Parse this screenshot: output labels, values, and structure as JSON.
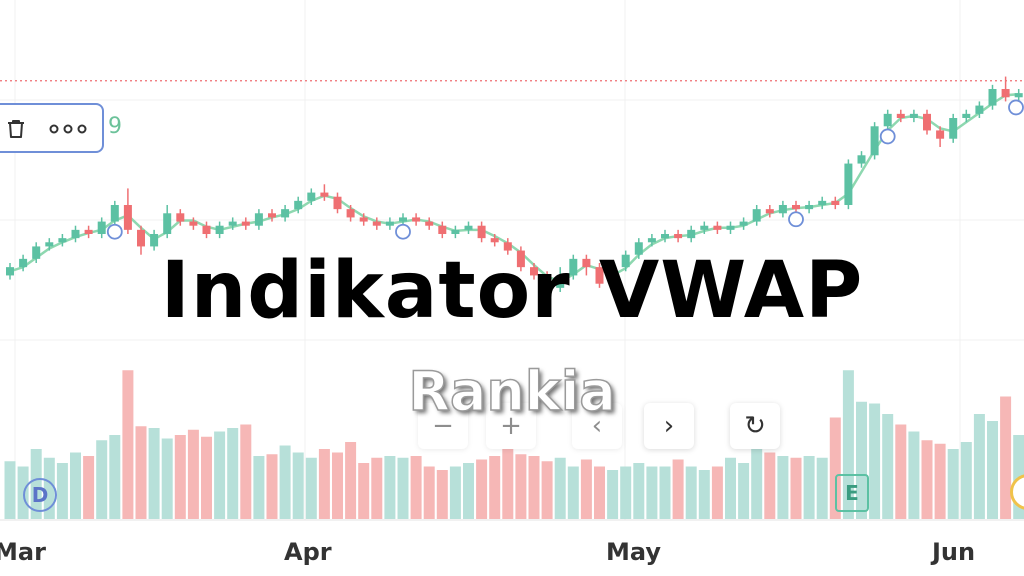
{
  "title": "Indikator VWAP",
  "watermark": "Rankia",
  "toolbar": {
    "value": "9",
    "icons": [
      "trash-icon",
      "more-dots-icon"
    ]
  },
  "nav_buttons": [
    {
      "name": "zoom-out-button",
      "glyph": "−"
    },
    {
      "name": "zoom-in-button",
      "glyph": "+"
    },
    {
      "name": "scroll-left-button",
      "glyph": "‹"
    },
    {
      "name": "scroll-right-button",
      "glyph": "›"
    },
    {
      "name": "reset-button",
      "glyph": "↻"
    }
  ],
  "events": {
    "dividend": "D",
    "earnings": "E"
  },
  "colors": {
    "up": "#5cc1a3",
    "down": "#ef6f72",
    "vol_up": "#b7e0d9",
    "vol_down": "#f6b7b6",
    "vwap": "#8ed8b0",
    "ref_line": "#ef6f72",
    "marker": "#6f8fd8"
  },
  "chart_data": {
    "type": "candlestick",
    "x_axis": {
      "tick_labels": [
        "Mar",
        "Apr",
        "May",
        "Jun"
      ]
    },
    "y_range": [
      90,
      160
    ],
    "reference_line": 155,
    "candles": [
      {
        "o": 108,
        "c": 110,
        "h": 111,
        "l": 107,
        "v": 33,
        "up": true
      },
      {
        "o": 110,
        "c": 112,
        "h": 113,
        "l": 109,
        "v": 30,
        "up": true
      },
      {
        "o": 112,
        "c": 115,
        "h": 116,
        "l": 111,
        "v": 40,
        "up": true
      },
      {
        "o": 115,
        "c": 116,
        "h": 117,
        "l": 114,
        "v": 35,
        "up": true
      },
      {
        "o": 116,
        "c": 117,
        "h": 118,
        "l": 115,
        "v": 32,
        "up": true
      },
      {
        "o": 117,
        "c": 119,
        "h": 120,
        "l": 116,
        "v": 38,
        "up": true
      },
      {
        "o": 119,
        "c": 118,
        "h": 120,
        "l": 117,
        "v": 36,
        "up": false
      },
      {
        "o": 118,
        "c": 121,
        "h": 122,
        "l": 117,
        "v": 45,
        "up": true
      },
      {
        "o": 121,
        "c": 125,
        "h": 126,
        "l": 120,
        "v": 48,
        "up": true
      },
      {
        "o": 125,
        "c": 119,
        "h": 129,
        "l": 118,
        "v": 85,
        "up": false
      },
      {
        "o": 119,
        "c": 115,
        "h": 120,
        "l": 113,
        "v": 53,
        "up": false
      },
      {
        "o": 115,
        "c": 118,
        "h": 119,
        "l": 114,
        "v": 52,
        "up": true
      },
      {
        "o": 118,
        "c": 123,
        "h": 125,
        "l": 117,
        "v": 46,
        "up": true
      },
      {
        "o": 123,
        "c": 121,
        "h": 124,
        "l": 120,
        "v": 48,
        "up": false
      },
      {
        "o": 121,
        "c": 120,
        "h": 122,
        "l": 119,
        "v": 51,
        "up": false
      },
      {
        "o": 120,
        "c": 118,
        "h": 121,
        "l": 117,
        "v": 47,
        "up": false
      },
      {
        "o": 118,
        "c": 120,
        "h": 121,
        "l": 117,
        "v": 50,
        "up": true
      },
      {
        "o": 120,
        "c": 121,
        "h": 122,
        "l": 119,
        "v": 52,
        "up": true
      },
      {
        "o": 121,
        "c": 120,
        "h": 122,
        "l": 119,
        "v": 54,
        "up": false
      },
      {
        "o": 120,
        "c": 123,
        "h": 124,
        "l": 119,
        "v": 36,
        "up": true
      },
      {
        "o": 123,
        "c": 122,
        "h": 124,
        "l": 121,
        "v": 37,
        "up": false
      },
      {
        "o": 122,
        "c": 124,
        "h": 125,
        "l": 121,
        "v": 42,
        "up": true
      },
      {
        "o": 124,
        "c": 126,
        "h": 127,
        "l": 123,
        "v": 38,
        "up": true
      },
      {
        "o": 126,
        "c": 128,
        "h": 129,
        "l": 125,
        "v": 35,
        "up": true
      },
      {
        "o": 128,
        "c": 127,
        "h": 130,
        "l": 126,
        "v": 40,
        "up": false
      },
      {
        "o": 127,
        "c": 124,
        "h": 128,
        "l": 123,
        "v": 38,
        "up": false
      },
      {
        "o": 124,
        "c": 122,
        "h": 125,
        "l": 121,
        "v": 44,
        "up": false
      },
      {
        "o": 122,
        "c": 121,
        "h": 123,
        "l": 120,
        "v": 32,
        "up": false
      },
      {
        "o": 121,
        "c": 120,
        "h": 122,
        "l": 119,
        "v": 35,
        "up": false
      },
      {
        "o": 120,
        "c": 121,
        "h": 122,
        "l": 119,
        "v": 36,
        "up": true
      },
      {
        "o": 121,
        "c": 122,
        "h": 123,
        "l": 120,
        "v": 35,
        "up": true
      },
      {
        "o": 122,
        "c": 121,
        "h": 123,
        "l": 120,
        "v": 36,
        "up": false
      },
      {
        "o": 121,
        "c": 120,
        "h": 122,
        "l": 119,
        "v": 30,
        "up": false
      },
      {
        "o": 120,
        "c": 118,
        "h": 121,
        "l": 117,
        "v": 28,
        "up": false
      },
      {
        "o": 118,
        "c": 119,
        "h": 120,
        "l": 117,
        "v": 30,
        "up": true
      },
      {
        "o": 119,
        "c": 120,
        "h": 121,
        "l": 118,
        "v": 32,
        "up": true
      },
      {
        "o": 120,
        "c": 117,
        "h": 121,
        "l": 116,
        "v": 34,
        "up": false
      },
      {
        "o": 117,
        "c": 116,
        "h": 118,
        "l": 115,
        "v": 36,
        "up": false
      },
      {
        "o": 116,
        "c": 114,
        "h": 117,
        "l": 113,
        "v": 40,
        "up": false
      },
      {
        "o": 114,
        "c": 110,
        "h": 115,
        "l": 109,
        "v": 37,
        "up": false
      },
      {
        "o": 110,
        "c": 108,
        "h": 111,
        "l": 107,
        "v": 36,
        "up": false
      },
      {
        "o": 108,
        "c": 105,
        "h": 109,
        "l": 104,
        "v": 33,
        "up": false
      },
      {
        "o": 105,
        "c": 108,
        "h": 110,
        "l": 104,
        "v": 35,
        "up": true
      },
      {
        "o": 108,
        "c": 112,
        "h": 113,
        "l": 107,
        "v": 30,
        "up": true
      },
      {
        "o": 112,
        "c": 110,
        "h": 113,
        "l": 108,
        "v": 34,
        "up": false
      },
      {
        "o": 110,
        "c": 106,
        "h": 111,
        "l": 105,
        "v": 30,
        "up": false
      },
      {
        "o": 106,
        "c": 110,
        "h": 111,
        "l": 105,
        "v": 28,
        "up": true
      },
      {
        "o": 110,
        "c": 113,
        "h": 114,
        "l": 109,
        "v": 30,
        "up": true
      },
      {
        "o": 113,
        "c": 116,
        "h": 117,
        "l": 112,
        "v": 32,
        "up": true
      },
      {
        "o": 116,
        "c": 117,
        "h": 118,
        "l": 115,
        "v": 30,
        "up": true
      },
      {
        "o": 117,
        "c": 118,
        "h": 119,
        "l": 116,
        "v": 30,
        "up": true
      },
      {
        "o": 118,
        "c": 117,
        "h": 119,
        "l": 116,
        "v": 34,
        "up": false
      },
      {
        "o": 117,
        "c": 119,
        "h": 120,
        "l": 116,
        "v": 30,
        "up": true
      },
      {
        "o": 119,
        "c": 120,
        "h": 121,
        "l": 118,
        "v": 28,
        "up": true
      },
      {
        "o": 120,
        "c": 119,
        "h": 121,
        "l": 118,
        "v": 30,
        "up": false
      },
      {
        "o": 119,
        "c": 120,
        "h": 121,
        "l": 118,
        "v": 35,
        "up": true
      },
      {
        "o": 120,
        "c": 121,
        "h": 122,
        "l": 119,
        "v": 32,
        "up": true
      },
      {
        "o": 121,
        "c": 124,
        "h": 125,
        "l": 120,
        "v": 40,
        "up": true
      },
      {
        "o": 124,
        "c": 123,
        "h": 125,
        "l": 122,
        "v": 38,
        "up": false
      },
      {
        "o": 123,
        "c": 125,
        "h": 126,
        "l": 122,
        "v": 36,
        "up": true
      },
      {
        "o": 125,
        "c": 124,
        "h": 126,
        "l": 123,
        "v": 35,
        "up": false
      },
      {
        "o": 124,
        "c": 125,
        "h": 126,
        "l": 123,
        "v": 36,
        "up": true
      },
      {
        "o": 125,
        "c": 126,
        "h": 127,
        "l": 124,
        "v": 35,
        "up": true
      },
      {
        "o": 126,
        "c": 125,
        "h": 127,
        "l": 124,
        "v": 58,
        "up": false
      },
      {
        "o": 125,
        "c": 135,
        "h": 136,
        "l": 124,
        "v": 85,
        "up": true
      },
      {
        "o": 135,
        "c": 137,
        "h": 138,
        "l": 134,
        "v": 67,
        "up": true
      },
      {
        "o": 137,
        "c": 144,
        "h": 145,
        "l": 136,
        "v": 66,
        "up": true
      },
      {
        "o": 144,
        "c": 147,
        "h": 148,
        "l": 143,
        "v": 60,
        "up": true
      },
      {
        "o": 147,
        "c": 146,
        "h": 148,
        "l": 145,
        "v": 54,
        "up": false
      },
      {
        "o": 146,
        "c": 147,
        "h": 148,
        "l": 145,
        "v": 50,
        "up": true
      },
      {
        "o": 147,
        "c": 143,
        "h": 148,
        "l": 142,
        "v": 45,
        "up": false
      },
      {
        "o": 143,
        "c": 141,
        "h": 144,
        "l": 139,
        "v": 43,
        "up": false
      },
      {
        "o": 141,
        "c": 146,
        "h": 147,
        "l": 140,
        "v": 40,
        "up": true
      },
      {
        "o": 146,
        "c": 147,
        "h": 148,
        "l": 145,
        "v": 44,
        "up": true
      },
      {
        "o": 147,
        "c": 149,
        "h": 150,
        "l": 146,
        "v": 60,
        "up": true
      },
      {
        "o": 149,
        "c": 153,
        "h": 154,
        "l": 148,
        "v": 56,
        "up": true
      },
      {
        "o": 153,
        "c": 151,
        "h": 156,
        "l": 150,
        "v": 70,
        "up": false
      },
      {
        "o": 151,
        "c": 152,
        "h": 153,
        "l": 150,
        "v": 48,
        "up": true
      }
    ],
    "vwap_markers": [
      8,
      30,
      60,
      67,
      86
    ]
  }
}
